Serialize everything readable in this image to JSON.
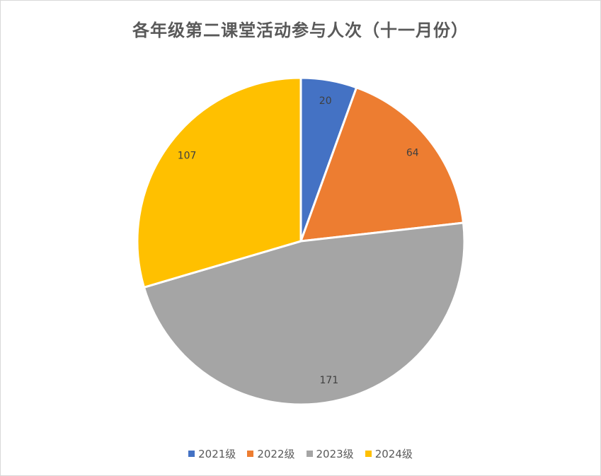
{
  "chart_data": {
    "type": "pie",
    "title": "各年级第二课堂活动参与人次（十一月份）",
    "categories": [
      "2021级",
      "2022级",
      "2023级",
      "2024级"
    ],
    "values": [
      20,
      64,
      171,
      107
    ],
    "colors": [
      "#4472C4",
      "#ED7D31",
      "#A5A5A5",
      "#FFC000"
    ],
    "data_labels": [
      "20",
      "64",
      "171",
      "107"
    ],
    "legend_position": "bottom"
  }
}
